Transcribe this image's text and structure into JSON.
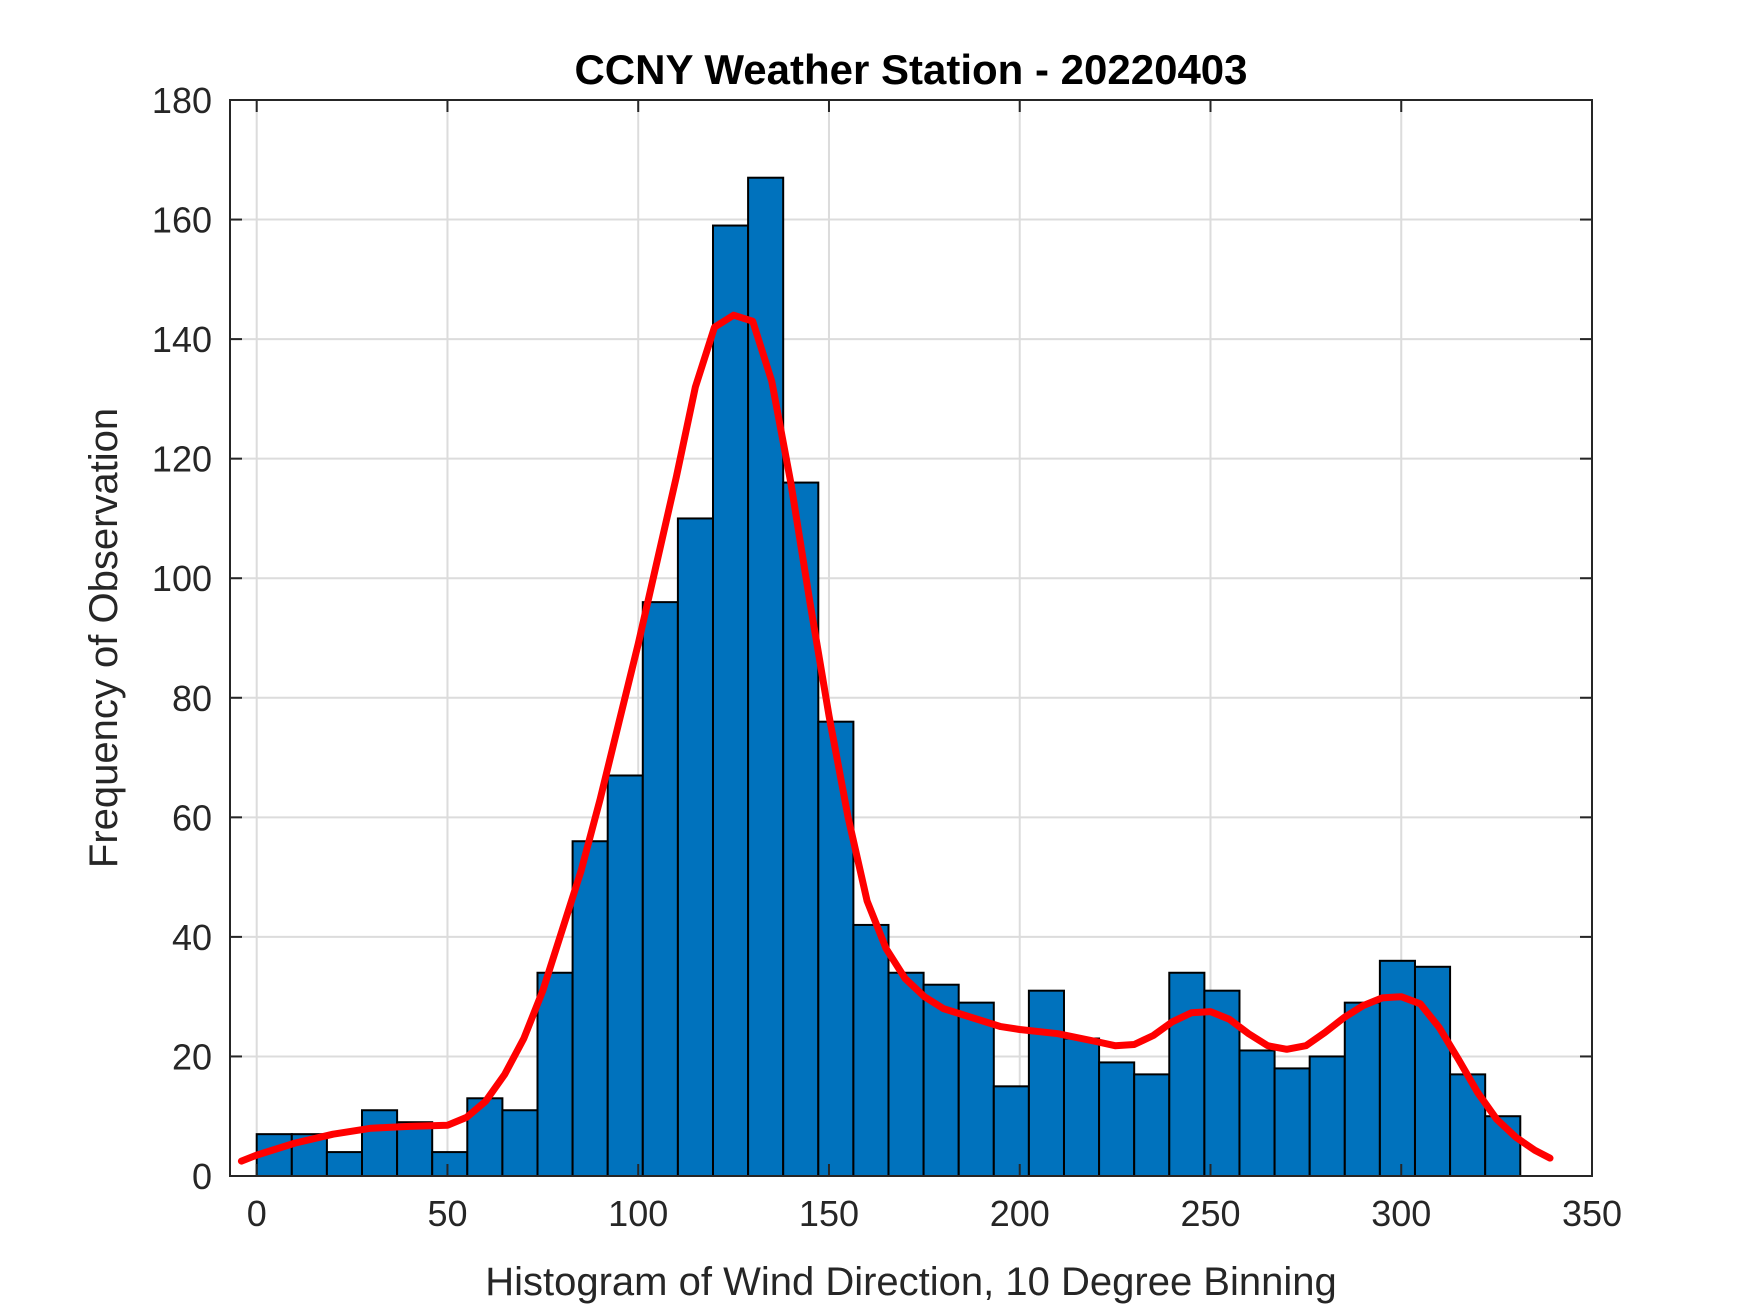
{
  "chart_data": {
    "type": "bar",
    "title": "CCNY Weather Station - 20220403",
    "xlabel": "Histogram of Wind Direction, 10 Degree Binning",
    "ylabel": "Frequency of Observation",
    "xlim": [
      -7,
      350
    ],
    "ylim": [
      0,
      180
    ],
    "xticks": [
      0,
      50,
      100,
      150,
      200,
      250,
      300,
      350
    ],
    "yticks": [
      0,
      20,
      40,
      60,
      80,
      100,
      120,
      140,
      160,
      180
    ],
    "grid": true,
    "bin_width": 9.2,
    "bins": [
      {
        "start": 0,
        "value": 7
      },
      {
        "start": 9.2,
        "value": 7
      },
      {
        "start": 18.4,
        "value": 4
      },
      {
        "start": 27.6,
        "value": 11
      },
      {
        "start": 36.8,
        "value": 9
      },
      {
        "start": 46,
        "value": 4
      },
      {
        "start": 55.2,
        "value": 13
      },
      {
        "start": 64.4,
        "value": 11
      },
      {
        "start": 73.6,
        "value": 34
      },
      {
        "start": 82.8,
        "value": 56
      },
      {
        "start": 92,
        "value": 67
      },
      {
        "start": 101.2,
        "value": 96
      },
      {
        "start": 110.4,
        "value": 110
      },
      {
        "start": 119.6,
        "value": 159
      },
      {
        "start": 128.8,
        "value": 167
      },
      {
        "start": 138,
        "value": 116
      },
      {
        "start": 147.2,
        "value": 76
      },
      {
        "start": 156.4,
        "value": 42
      },
      {
        "start": 165.6,
        "value": 34
      },
      {
        "start": 174.8,
        "value": 32
      },
      {
        "start": 184,
        "value": 29
      },
      {
        "start": 193.2,
        "value": 15
      },
      {
        "start": 202.4,
        "value": 31
      },
      {
        "start": 211.6,
        "value": 23
      },
      {
        "start": 220.8,
        "value": 19
      },
      {
        "start": 230,
        "value": 17
      },
      {
        "start": 239.2,
        "value": 34
      },
      {
        "start": 248.4,
        "value": 31
      },
      {
        "start": 257.6,
        "value": 21
      },
      {
        "start": 266.8,
        "value": 18
      },
      {
        "start": 276,
        "value": 20
      },
      {
        "start": 285.2,
        "value": 29
      },
      {
        "start": 294.4,
        "value": 36
      },
      {
        "start": 303.6,
        "value": 35
      },
      {
        "start": 312.8,
        "value": 17
      },
      {
        "start": 322,
        "value": 10
      }
    ],
    "curve": {
      "x": [
        -4,
        0,
        10,
        20,
        30,
        40,
        50,
        55,
        60,
        65,
        70,
        75,
        80,
        85,
        90,
        95,
        100,
        105,
        110,
        115,
        120,
        125,
        130,
        135,
        140,
        145,
        150,
        155,
        160,
        165,
        170,
        175,
        180,
        185,
        190,
        195,
        200,
        210,
        220,
        225,
        230,
        235,
        240,
        245,
        250,
        255,
        260,
        265,
        270,
        275,
        280,
        285,
        290,
        295,
        300,
        305,
        310,
        315,
        320,
        325,
        330,
        335,
        339
      ],
      "y": [
        2.5,
        3.5,
        5.5,
        7,
        8,
        8.3,
        8.5,
        9.8,
        12.5,
        17,
        23,
        31,
        41,
        51,
        63,
        76,
        89,
        103,
        117,
        132,
        142,
        144,
        143,
        133,
        116,
        96,
        77,
        60,
        46,
        38,
        33,
        30,
        28,
        27,
        26,
        25,
        24.5,
        23.8,
        22.5,
        21.8,
        22,
        23.5,
        25.8,
        27.3,
        27.5,
        26.2,
        23.8,
        21.8,
        21.2,
        21.8,
        24,
        26.5,
        28.5,
        29.8,
        30,
        28.8,
        24.8,
        19.5,
        14,
        9.5,
        6.5,
        4.3,
        3
      ]
    },
    "colors": {
      "bar_fill": "#0072BD",
      "bar_edge": "#000000",
      "curve": "#ff0000",
      "grid": "#dcdcdc",
      "axis": "#262626"
    }
  }
}
